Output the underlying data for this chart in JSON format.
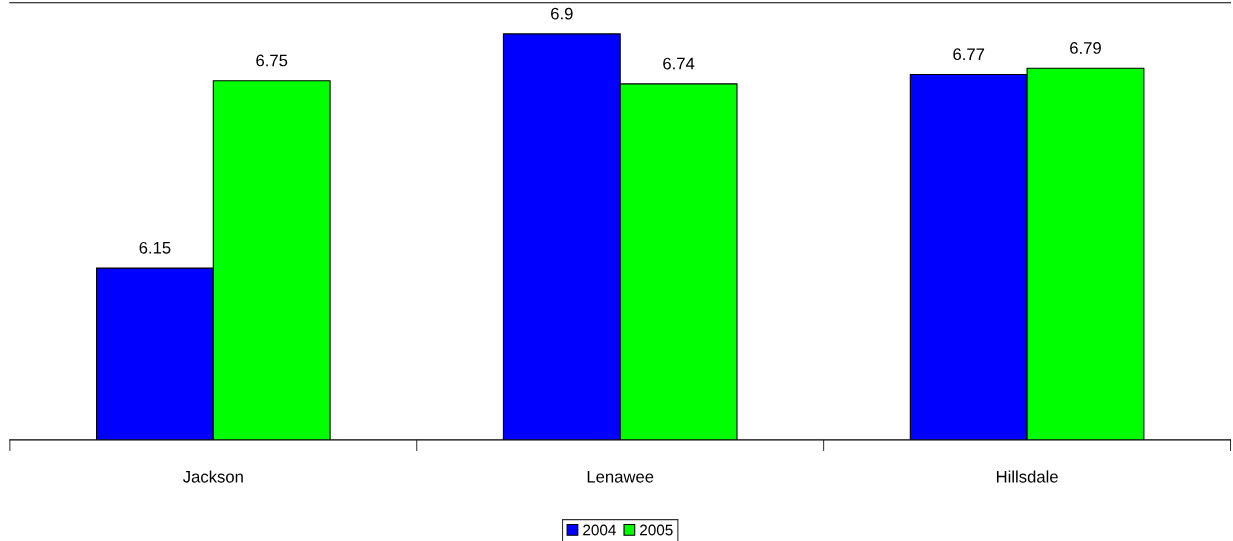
{
  "chart_data": {
    "type": "bar",
    "categories": [
      "Jackson",
      "Lenawee",
      "Hillsdale"
    ],
    "series": [
      {
        "name": "2004",
        "color": "#0000ff",
        "values": [
          6.15,
          6.9,
          6.77
        ]
      },
      {
        "name": "2005",
        "color": "#00ff00",
        "values": [
          6.75,
          6.74,
          6.79
        ]
      }
    ],
    "ylim": [
      5.6,
      7.0
    ],
    "tick_labels": "x",
    "data_labels": true,
    "legend": "bottom",
    "grid": false
  }
}
